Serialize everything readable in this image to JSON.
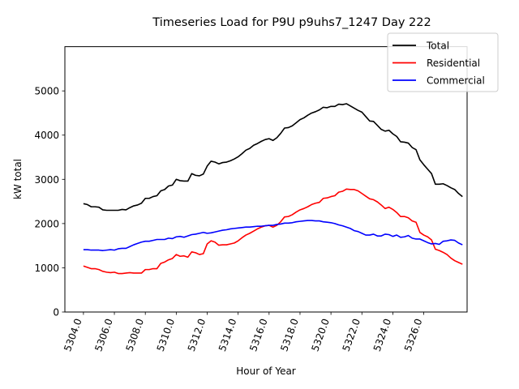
{
  "chart_data": {
    "type": "line",
    "title": "Timeseries Load for P9U p9uhs7_1247  Day 222",
    "xlabel": "Hour of Year",
    "ylabel": "kW total",
    "xlim": [
      5302.8,
      5328.8
    ],
    "ylim": [
      0,
      6000
    ],
    "xticks": [
      5304,
      5306,
      5308,
      5310,
      5312,
      5314,
      5316,
      5318,
      5320,
      5322,
      5324,
      5326
    ],
    "xtick_labels": [
      "5304.0",
      "5306.0",
      "5308.0",
      "5310.0",
      "5312.0",
      "5314.0",
      "5316.0",
      "5318.0",
      "5320.0",
      "5322.0",
      "5324.0",
      "5326.0"
    ],
    "yticks": [
      0,
      1000,
      2000,
      3000,
      4000,
      5000
    ],
    "ytick_labels": [
      "0",
      "1000",
      "2000",
      "3000",
      "4000",
      "5000"
    ],
    "grid": false,
    "legend_position": "top-right",
    "x_start": 5304,
    "x_step": 0.25,
    "series": [
      {
        "name": "Total",
        "color": "#000000",
        "values": [
          2450,
          2430,
          2380,
          2380,
          2370,
          2310,
          2300,
          2300,
          2300,
          2300,
          2320,
          2310,
          2360,
          2400,
          2420,
          2460,
          2570,
          2570,
          2610,
          2630,
          2740,
          2770,
          2850,
          2870,
          3000,
          2970,
          2960,
          2960,
          3130,
          3090,
          3080,
          3120,
          3300,
          3410,
          3390,
          3350,
          3380,
          3390,
          3420,
          3460,
          3510,
          3580,
          3660,
          3700,
          3770,
          3810,
          3860,
          3900,
          3920,
          3880,
          3940,
          4040,
          4160,
          4170,
          4210,
          4280,
          4350,
          4390,
          4450,
          4500,
          4530,
          4570,
          4630,
          4620,
          4650,
          4650,
          4700,
          4690,
          4710,
          4660,
          4610,
          4560,
          4520,
          4420,
          4320,
          4310,
          4220,
          4130,
          4090,
          4110,
          4030,
          3970,
          3850,
          3840,
          3820,
          3720,
          3670,
          3440,
          3330,
          3230,
          3130,
          2890,
          2890,
          2900,
          2860,
          2810,
          2770,
          2680,
          2610
        ]
      },
      {
        "name": "Residential",
        "color": "#ff0000",
        "values": [
          1040,
          1010,
          980,
          980,
          960,
          920,
          900,
          890,
          900,
          870,
          870,
          880,
          890,
          880,
          880,
          880,
          960,
          960,
          980,
          980,
          1100,
          1130,
          1180,
          1210,
          1300,
          1260,
          1270,
          1240,
          1360,
          1340,
          1300,
          1320,
          1540,
          1610,
          1580,
          1510,
          1520,
          1520,
          1540,
          1560,
          1610,
          1680,
          1740,
          1780,
          1830,
          1880,
          1920,
          1950,
          1960,
          1920,
          1960,
          2040,
          2150,
          2160,
          2200,
          2260,
          2310,
          2340,
          2380,
          2430,
          2460,
          2480,
          2570,
          2580,
          2610,
          2630,
          2710,
          2730,
          2780,
          2770,
          2770,
          2740,
          2680,
          2620,
          2560,
          2540,
          2490,
          2420,
          2340,
          2370,
          2320,
          2250,
          2160,
          2160,
          2130,
          2060,
          2030,
          1800,
          1740,
          1700,
          1630,
          1420,
          1390,
          1350,
          1300,
          1220,
          1160,
          1120,
          1080
        ]
      },
      {
        "name": "Commercial",
        "color": "#0000ff",
        "values": [
          1410,
          1410,
          1400,
          1400,
          1400,
          1390,
          1400,
          1410,
          1400,
          1430,
          1440,
          1440,
          1480,
          1520,
          1550,
          1580,
          1600,
          1600,
          1620,
          1640,
          1640,
          1640,
          1670,
          1660,
          1700,
          1710,
          1690,
          1720,
          1750,
          1760,
          1780,
          1800,
          1780,
          1790,
          1810,
          1830,
          1850,
          1860,
          1880,
          1890,
          1900,
          1910,
          1920,
          1920,
          1930,
          1940,
          1940,
          1950,
          1960,
          1960,
          1980,
          1990,
          2010,
          2010,
          2020,
          2040,
          2050,
          2060,
          2070,
          2070,
          2060,
          2060,
          2040,
          2030,
          2020,
          2000,
          1970,
          1950,
          1920,
          1890,
          1840,
          1820,
          1780,
          1740,
          1740,
          1760,
          1720,
          1720,
          1760,
          1750,
          1710,
          1740,
          1690,
          1700,
          1730,
          1670,
          1650,
          1650,
          1610,
          1570,
          1540,
          1550,
          1530,
          1600,
          1610,
          1630,
          1620,
          1560,
          1520
        ]
      }
    ]
  }
}
